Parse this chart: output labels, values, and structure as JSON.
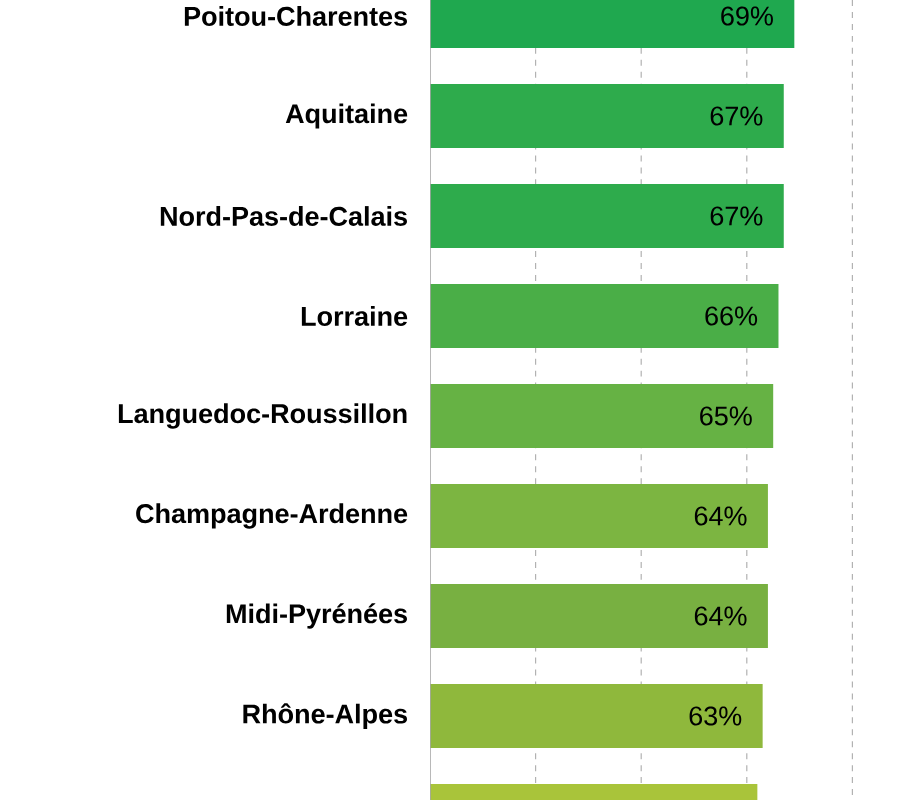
{
  "chart_data": {
    "type": "bar",
    "orientation": "horizontal",
    "categories": [
      "Poitou-Charentes",
      "Aquitaine",
      "Nord-Pas-de-Calais",
      "Lorraine",
      "Languedoc-Roussillon",
      "Champagne-Ardenne",
      "Midi-Pyrénées",
      "Rhône-Alpes",
      null
    ],
    "values": [
      69,
      67,
      67,
      66,
      65,
      64,
      64,
      63,
      62
    ],
    "value_labels": [
      "69%",
      "67%",
      "67%",
      "66%",
      "65%",
      "64%",
      "64%",
      "63%",
      null
    ],
    "colors": [
      "#1fa84f",
      "#2eab4c",
      "#2eab4c",
      "#4aae47",
      "#66b244",
      "#7cb541",
      "#78b041",
      "#8fb83c",
      "#a9c43a"
    ],
    "xticks": [
      {
        "value": 20,
        "label": null
      },
      {
        "value": 40,
        "label": null
      },
      {
        "value": 60,
        "label": null
      },
      {
        "value": 80,
        "label": null
      }
    ],
    "grid": "x"
  }
}
